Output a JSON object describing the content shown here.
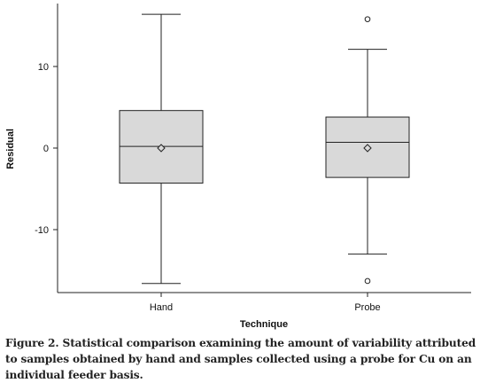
{
  "figure": {
    "caption": "Figure 2. Statistical comparison examining the amount of variability attributed to samples obtained by hand and samples collected using a probe for Cu on an individual feeder basis."
  },
  "chart_data": {
    "type": "box",
    "xlabel": "Technique",
    "ylabel": "Residual",
    "categories": [
      "Hand",
      "Probe"
    ],
    "yticks": [
      10,
      0,
      -10
    ],
    "ylim": [
      -17.7,
      17.7
    ],
    "grid": false,
    "legend": "none",
    "box_fill": "#d9d9d9",
    "series": [
      {
        "category": "Hand",
        "whisker_low": -16.6,
        "q1": -4.3,
        "median": 0.2,
        "mean": 0.0,
        "q3": 4.6,
        "whisker_high": 16.4,
        "outliers": []
      },
      {
        "category": "Probe",
        "whisker_low": -13.0,
        "q1": -3.6,
        "median": 0.7,
        "mean": 0.0,
        "q3": 3.8,
        "whisker_high": 12.1,
        "outliers": [
          15.8,
          -16.3
        ]
      }
    ]
  }
}
